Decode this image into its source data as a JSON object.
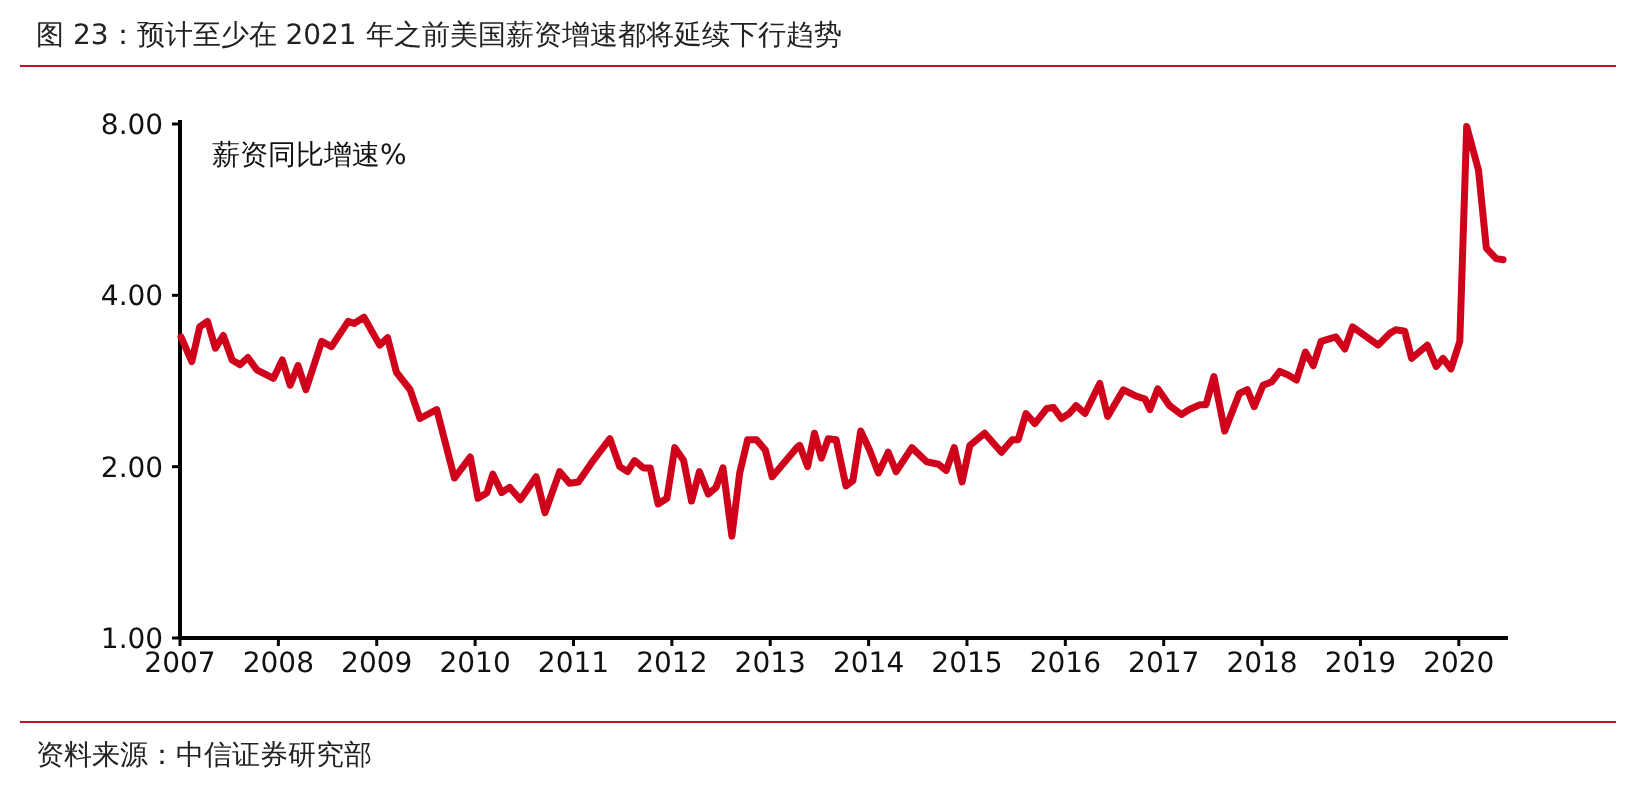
{
  "chart_data": {
    "type": "line",
    "title": "图 23：预计至少在 2021 年之前美国薪资增速都将延续下行趋势",
    "ylabel": "薪资同比增速%",
    "annotations": [
      "资料来源：中信证券研究部"
    ],
    "log": "y",
    "grid": false,
    "marker": "none",
    "line_style": "solid",
    "xlim": [
      2007,
      2020.5
    ],
    "xticks": [
      2007,
      2008,
      2009,
      2010,
      2011,
      2012,
      2013,
      2014,
      2015,
      2016,
      2017,
      2018,
      2019,
      2020
    ],
    "ylim": [
      1,
      8
    ],
    "yticks": [
      {
        "value": 1,
        "label": "1.00"
      },
      {
        "value": 2,
        "label": "2.00"
      },
      {
        "value": 4,
        "label": "4.00"
      },
      {
        "value": 8,
        "label": "8.00"
      }
    ],
    "series": [
      {
        "color": "#d0021b",
        "x": [
          2007.01,
          2007.12,
          2007.2,
          2007.28,
          2007.36,
          2007.44,
          2007.53,
          2007.61,
          2007.69,
          2007.78,
          2007.95,
          2008.04,
          2008.12,
          2008.2,
          2008.28,
          2008.44,
          2008.54,
          2008.71,
          2008.77,
          2008.87,
          2009.03,
          2009.11,
          2009.2,
          2009.34,
          2009.44,
          2009.61,
          2009.79,
          2009.95,
          2010.03,
          2010.12,
          2010.18,
          2010.27,
          2010.35,
          2010.46,
          2010.62,
          2010.71,
          2010.86,
          2010.96,
          2011.05,
          2011.2,
          2011.37,
          2011.47,
          2011.55,
          2011.62,
          2011.71,
          2011.78,
          2011.86,
          2011.95,
          2012.03,
          2012.12,
          2012.2,
          2012.28,
          2012.37,
          2012.45,
          2012.52,
          2012.61,
          2012.69,
          2012.77,
          2012.86,
          2012.95,
          2013.02,
          2013.16,
          2013.27,
          2013.3,
          2013.38,
          2013.45,
          2013.52,
          2013.59,
          2013.67,
          2013.77,
          2013.84,
          2013.92,
          2014.01,
          2014.1,
          2014.2,
          2014.28,
          2014.44,
          2014.59,
          2014.71,
          2014.79,
          2014.87,
          2014.95,
          2015.03,
          2015.18,
          2015.35,
          2015.46,
          2015.52,
          2015.6,
          2015.69,
          2015.81,
          2015.88,
          2015.96,
          2016.04,
          2016.11,
          2016.2,
          2016.35,
          2016.43,
          2016.59,
          2016.72,
          2016.81,
          2016.86,
          2016.94,
          2017.06,
          2017.18,
          2017.26,
          2017.37,
          2017.43,
          2017.51,
          2017.62,
          2017.77,
          2017.85,
          2017.92,
          2018.01,
          2018.1,
          2018.18,
          2018.26,
          2018.35,
          2018.44,
          2018.52,
          2018.6,
          2018.75,
          2018.84,
          2018.92,
          2019.18,
          2019.3,
          2019.36,
          2019.45,
          2019.52,
          2019.68,
          2019.77,
          2019.84,
          2019.92,
          2020.01,
          2020.08,
          2020.2,
          2020.28,
          2020.38,
          2020.45
        ],
        "values": [
          3.38,
          3.06,
          3.52,
          3.6,
          3.23,
          3.4,
          3.08,
          3.02,
          3.11,
          2.96,
          2.86,
          3.08,
          2.78,
          3.01,
          2.73,
          3.32,
          3.25,
          3.6,
          3.57,
          3.66,
          3.27,
          3.37,
          2.93,
          2.73,
          2.43,
          2.52,
          1.91,
          2.08,
          1.76,
          1.8,
          1.94,
          1.8,
          1.84,
          1.75,
          1.92,
          1.66,
          1.96,
          1.87,
          1.88,
          2.05,
          2.24,
          2.0,
          1.96,
          2.05,
          1.99,
          1.99,
          1.72,
          1.76,
          2.16,
          2.05,
          1.74,
          1.96,
          1.79,
          1.84,
          1.99,
          1.51,
          1.95,
          2.23,
          2.23,
          2.14,
          1.92,
          2.05,
          2.16,
          2.18,
          2.0,
          2.29,
          2.07,
          2.24,
          2.23,
          1.85,
          1.89,
          2.31,
          2.14,
          1.95,
          2.12,
          1.96,
          2.16,
          2.04,
          2.02,
          1.97,
          2.16,
          1.88,
          2.18,
          2.29,
          2.12,
          2.23,
          2.23,
          2.48,
          2.38,
          2.53,
          2.54,
          2.43,
          2.48,
          2.56,
          2.48,
          2.8,
          2.45,
          2.73,
          2.66,
          2.63,
          2.52,
          2.74,
          2.56,
          2.47,
          2.52,
          2.57,
          2.57,
          2.88,
          2.31,
          2.69,
          2.73,
          2.55,
          2.78,
          2.82,
          2.94,
          2.9,
          2.84,
          3.18,
          3.01,
          3.32,
          3.38,
          3.22,
          3.52,
          3.27,
          3.43,
          3.48,
          3.46,
          3.1,
          3.27,
          3.0,
          3.1,
          2.97,
          3.32,
          7.92,
          6.64,
          4.84,
          4.64,
          4.62
        ]
      }
    ]
  }
}
